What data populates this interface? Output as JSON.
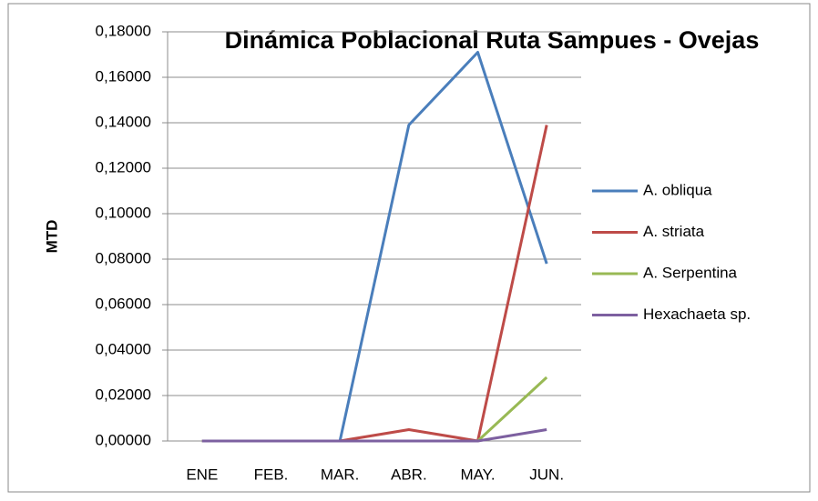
{
  "chart_data": {
    "type": "line",
    "title": "Dinámica Poblacional Ruta Sampues - Ovejas",
    "y_label": "MTD",
    "categories": [
      "ENE",
      "FEB.",
      "MAR.",
      "ABR.",
      "MAY.",
      "JUN."
    ],
    "series": [
      {
        "name": "A. obliqua",
        "color": "#4a7ebb",
        "values": [
          0,
          0,
          0,
          0.139,
          0.171,
          0.078
        ]
      },
      {
        "name": "A. striata",
        "color": "#be4b48",
        "values": [
          0,
          0,
          0,
          0.005,
          0,
          0.139
        ]
      },
      {
        "name": "A. Serpentina",
        "color": "#98b954",
        "values": [
          0,
          0,
          0,
          0,
          0,
          0.028
        ]
      },
      {
        "name": "Hexachaeta sp.",
        "color": "#7d60a0",
        "values": [
          0,
          0,
          0,
          0,
          0,
          0.005
        ]
      }
    ],
    "ylim": [
      0,
      0.18
    ],
    "yticks": [
      {
        "value": 0,
        "label": "0,00000"
      },
      {
        "value": 0.02,
        "label": "0,02000"
      },
      {
        "value": 0.04,
        "label": "0,04000"
      },
      {
        "value": 0.06,
        "label": "0,06000"
      },
      {
        "value": 0.08,
        "label": "0,08000"
      },
      {
        "value": 0.1,
        "label": "0,10000"
      },
      {
        "value": 0.12,
        "label": "0,12000"
      },
      {
        "value": 0.14,
        "label": "0,14000"
      },
      {
        "value": 0.16,
        "label": "0,16000"
      },
      {
        "value": 0.18,
        "label": "0,18000"
      }
    ],
    "grid": true,
    "legend": "right"
  }
}
